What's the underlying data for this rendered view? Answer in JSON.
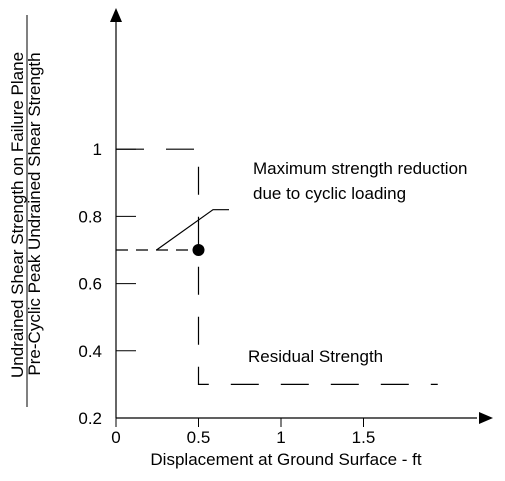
{
  "chart_data": {
    "type": "line",
    "title": "",
    "xlabel": "Displacement at Ground Surface - ft",
    "ylabel": {
      "numerator": "Undrained Shear Strength on Failure Plane",
      "denominator": "Pre-Cyclic Peak Undrained Shear Strength"
    },
    "xlim": [
      0,
      2
    ],
    "ylim": [
      0.2,
      1.2
    ],
    "x_ticks": [
      0,
      0.5,
      1,
      1.5
    ],
    "x_tick_labels": [
      "0",
      "0.5",
      "1",
      "1.5"
    ],
    "y_ticks": [
      0.2,
      0.4,
      0.6,
      0.8,
      1
    ],
    "y_tick_labels": [
      "0.2",
      "0.4",
      "0.6",
      "0.8",
      "1"
    ],
    "grid": false,
    "series": [
      {
        "style": "dashed",
        "points": [
          [
            0,
            1
          ],
          [
            0.5,
            1
          ],
          [
            0.5,
            0.3
          ],
          [
            1.95,
            0.3
          ]
        ]
      },
      {
        "style": "dashed",
        "points": [
          [
            0,
            0.7
          ],
          [
            0.5,
            0.7
          ]
        ]
      }
    ],
    "points": [
      {
        "x": 0.5,
        "y": 0.7,
        "marker": "filled-circle"
      }
    ],
    "annotations": [
      {
        "lines": [
          "Maximum strength reduction",
          "due to cyclic loading"
        ],
        "target": [
          0.5,
          0.7
        ]
      },
      {
        "lines": [
          "Residual Strength"
        ],
        "target": [
          1.2,
          0.3
        ]
      }
    ]
  }
}
